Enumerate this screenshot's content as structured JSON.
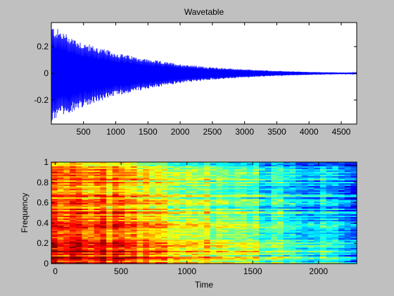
{
  "chart_data": [
    {
      "type": "line",
      "title": "Wavetable",
      "xlabel": "",
      "ylabel": "",
      "xlim": [
        1,
        4740
      ],
      "ylim": [
        -0.38,
        0.38
      ],
      "xticks": [
        500,
        1000,
        1500,
        2000,
        2500,
        3000,
        3500,
        4000,
        4500
      ],
      "xtick_labels": [
        "500",
        "1000",
        "1500",
        "2000",
        "2500",
        "3000",
        "3500",
        "4000",
        "4500"
      ],
      "yticks": [
        0.2,
        0,
        -0.2
      ],
      "ytick_labels": [
        "0.2",
        "0",
        "-0.2"
      ],
      "grid": false,
      "series": [
        {
          "color": "#0000ff",
          "envelope": {
            "x": [
              1,
              500,
              1000,
              1500,
              2000,
              2500,
              3000,
              3500,
              4000,
              4500,
              4740
            ],
            "upper": [
              0.36,
              0.23,
              0.155,
              0.105,
              0.07,
              0.045,
              0.03,
              0.018,
              0.01,
              0.006,
              0.005
            ],
            "lower": [
              -0.36,
              -0.25,
              -0.17,
              -0.115,
              -0.075,
              -0.048,
              -0.032,
              -0.02,
              -0.012,
              -0.007,
              -0.006
            ]
          }
        }
      ]
    },
    {
      "type": "heatmap",
      "title": "",
      "xlabel": "Time",
      "ylabel": "Frequency",
      "xlim": [
        -30,
        2290
      ],
      "ylim": [
        0,
        1
      ],
      "xticks": [
        0,
        500,
        1000,
        1500,
        2000
      ],
      "xtick_labels": [
        "0",
        "500",
        "1000",
        "1500",
        "2000"
      ],
      "yticks": [
        0,
        0.2,
        0.4,
        0.6,
        0.8,
        1
      ],
      "ytick_labels": [
        "0",
        "0.2",
        "0.4",
        "0.6",
        "0.8",
        "1"
      ],
      "colormap": "jet",
      "grid": false,
      "approx_intensity": {
        "time": [
          0,
          500,
          1000,
          1500,
          2000,
          2290
        ],
        "low_freq_level": [
          0.95,
          0.85,
          0.7,
          0.55,
          0.42,
          0.35
        ],
        "high_freq_level": [
          0.75,
          0.65,
          0.5,
          0.38,
          0.28,
          0.22
        ]
      }
    }
  ]
}
